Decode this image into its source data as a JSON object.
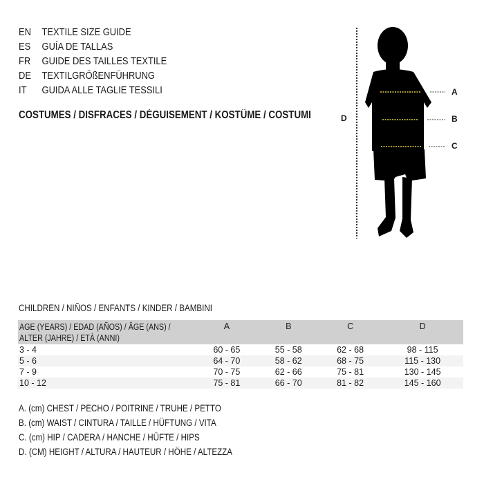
{
  "guide_titles": [
    {
      "code": "EN",
      "text": "TEXTILE SIZE GUIDE"
    },
    {
      "code": "ES",
      "text": "GUÍA DE TALLAS"
    },
    {
      "code": "FR",
      "text": "GUIDE DES TAILLES TEXTILE"
    },
    {
      "code": "DE",
      "text": "TEXTILGRÖßENFÜHRUNG"
    },
    {
      "code": "IT",
      "text": "GUIDA ALLE TAGLIE TESSILI"
    }
  ],
  "category_title": "COSTUMES / DISFRACES / DÉGUISEMENT / KOSTÜME / COSTUMI",
  "figure": {
    "height_label": "D",
    "labels": [
      "A",
      "B",
      "C"
    ],
    "measure_line_color": "#e6d24a"
  },
  "section_title": "CHILDREN / NIÑOS / ENFANTS / KINDER / BAMBINI",
  "table": {
    "header": {
      "age_line1": "AGE (YEARS) / EDAD (AÑOS) / ÂGE (ANS) /",
      "age_line2": "ALTER (JAHRE) / ETÀ (ANNI)",
      "cols": [
        "A",
        "B",
        "C",
        "D"
      ]
    },
    "rows": [
      {
        "age": "3 - 4",
        "values": [
          "60 - 65",
          "55 - 58",
          "62 - 68",
          "98 - 115"
        ]
      },
      {
        "age": "5 - 6",
        "values": [
          "64 - 70",
          "58 - 62",
          "68 - 75",
          "115 - 130"
        ]
      },
      {
        "age": "7 - 9",
        "values": [
          "70 - 75",
          "62 - 66",
          "75 - 81",
          "130 - 145"
        ]
      },
      {
        "age": "10 - 12",
        "values": [
          "75 - 81",
          "66 - 70",
          "81 - 82",
          "145 - 160"
        ]
      }
    ]
  },
  "legend": [
    "A. (cm) CHEST / PECHO / POITRINE / TRUHE / PETTO",
    "B. (cm) WAIST / CINTURA / TAILLE / HÜFTUNG / VITA",
    "C. (cm) HIP / CADERA / HANCHE / HÜFTE / HIPS",
    "D. (CM) HEIGHT / ALTURA / HAUTEUR / HÖHE / ALTEZZA"
  ]
}
